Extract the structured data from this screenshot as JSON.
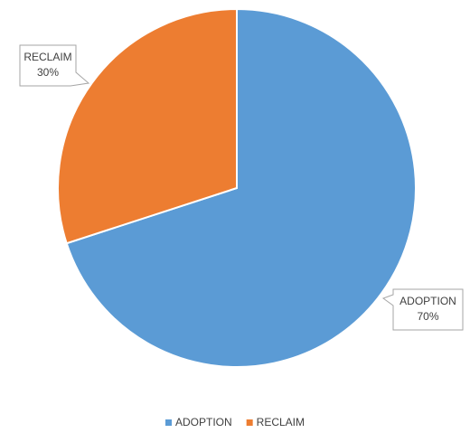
{
  "chart_data": {
    "type": "pie",
    "categories": [
      "ADOPTION",
      "RECLAIM"
    ],
    "values": [
      70,
      30
    ],
    "value_labels": [
      "70%",
      "30%"
    ],
    "colors": [
      "#5b9bd5",
      "#ed7d31"
    ],
    "legend": "bottom"
  }
}
